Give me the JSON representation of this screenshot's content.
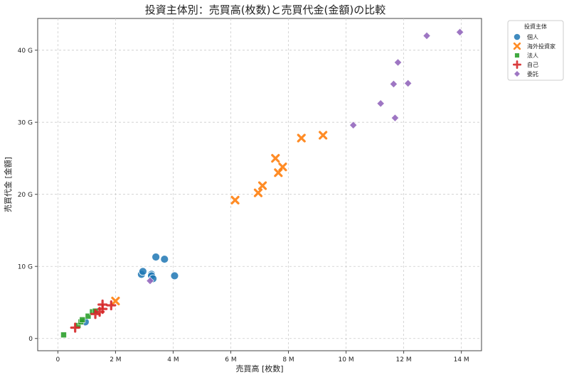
{
  "chart_data": {
    "type": "scatter",
    "title": "投資主体別：売買高(枚数)と売買代金(金額)の比較",
    "xlabel": "売買高 [枚数]",
    "ylabel": "売買代金 [金額]",
    "xlim": [
      -0.7,
      14.7
    ],
    "ylim": [
      -1.7,
      44.4
    ],
    "x_unit": "M",
    "y_unit": "G",
    "xticks": [
      0,
      2,
      4,
      6,
      8,
      10,
      12,
      14
    ],
    "yticks": [
      0,
      10,
      20,
      30,
      40
    ],
    "xtick_labels": [
      "0",
      "2 M",
      "4 M",
      "6 M",
      "8 M",
      "10 M",
      "12 M",
      "14 M"
    ],
    "ytick_labels": [
      "0",
      "10 G",
      "20 G",
      "30 G",
      "40 G"
    ],
    "grid": true,
    "legend": {
      "title": "投資主体",
      "placement": "outside-top-right"
    },
    "series": [
      {
        "name": "個人",
        "marker": "circle",
        "color": "#1f77b4",
        "points": [
          [
            0.95,
            2.3
          ],
          [
            2.9,
            8.9
          ],
          [
            2.95,
            9.3
          ],
          [
            3.25,
            8.9
          ],
          [
            3.25,
            8.7
          ],
          [
            3.3,
            8.3
          ],
          [
            3.4,
            11.3
          ],
          [
            3.7,
            11.0
          ],
          [
            4.05,
            8.7
          ]
        ]
      },
      {
        "name": "海外投資家",
        "marker": "x",
        "color": "#ff7f0e",
        "points": [
          [
            2.0,
            5.2
          ],
          [
            6.15,
            19.2
          ],
          [
            6.95,
            20.2
          ],
          [
            7.1,
            21.2
          ],
          [
            7.55,
            25.0
          ],
          [
            7.65,
            23.0
          ],
          [
            7.8,
            23.8
          ],
          [
            8.45,
            27.8
          ],
          [
            9.2,
            28.2
          ]
        ]
      },
      {
        "name": "法人",
        "marker": "square",
        "color": "#2ca02c",
        "points": [
          [
            0.2,
            0.5
          ],
          [
            0.7,
            1.8
          ],
          [
            0.8,
            2.3
          ],
          [
            0.85,
            2.6
          ],
          [
            1.05,
            3.1
          ],
          [
            1.2,
            3.7
          ],
          [
            1.3,
            3.8
          ]
        ]
      },
      {
        "name": "自己",
        "marker": "plus",
        "color": "#d62728",
        "points": [
          [
            0.6,
            1.5
          ],
          [
            1.3,
            3.4
          ],
          [
            1.45,
            3.7
          ],
          [
            1.55,
            4.1
          ],
          [
            1.55,
            4.7
          ],
          [
            1.85,
            4.6
          ]
        ]
      },
      {
        "name": "委託",
        "marker": "diamond",
        "color": "#9467bd",
        "points": [
          [
            3.2,
            8.0
          ],
          [
            10.25,
            29.6
          ],
          [
            11.2,
            32.6
          ],
          [
            11.65,
            35.3
          ],
          [
            11.7,
            30.6
          ],
          [
            11.8,
            38.3
          ],
          [
            12.15,
            35.4
          ],
          [
            12.8,
            42.0
          ],
          [
            13.95,
            42.5
          ]
        ]
      }
    ]
  }
}
